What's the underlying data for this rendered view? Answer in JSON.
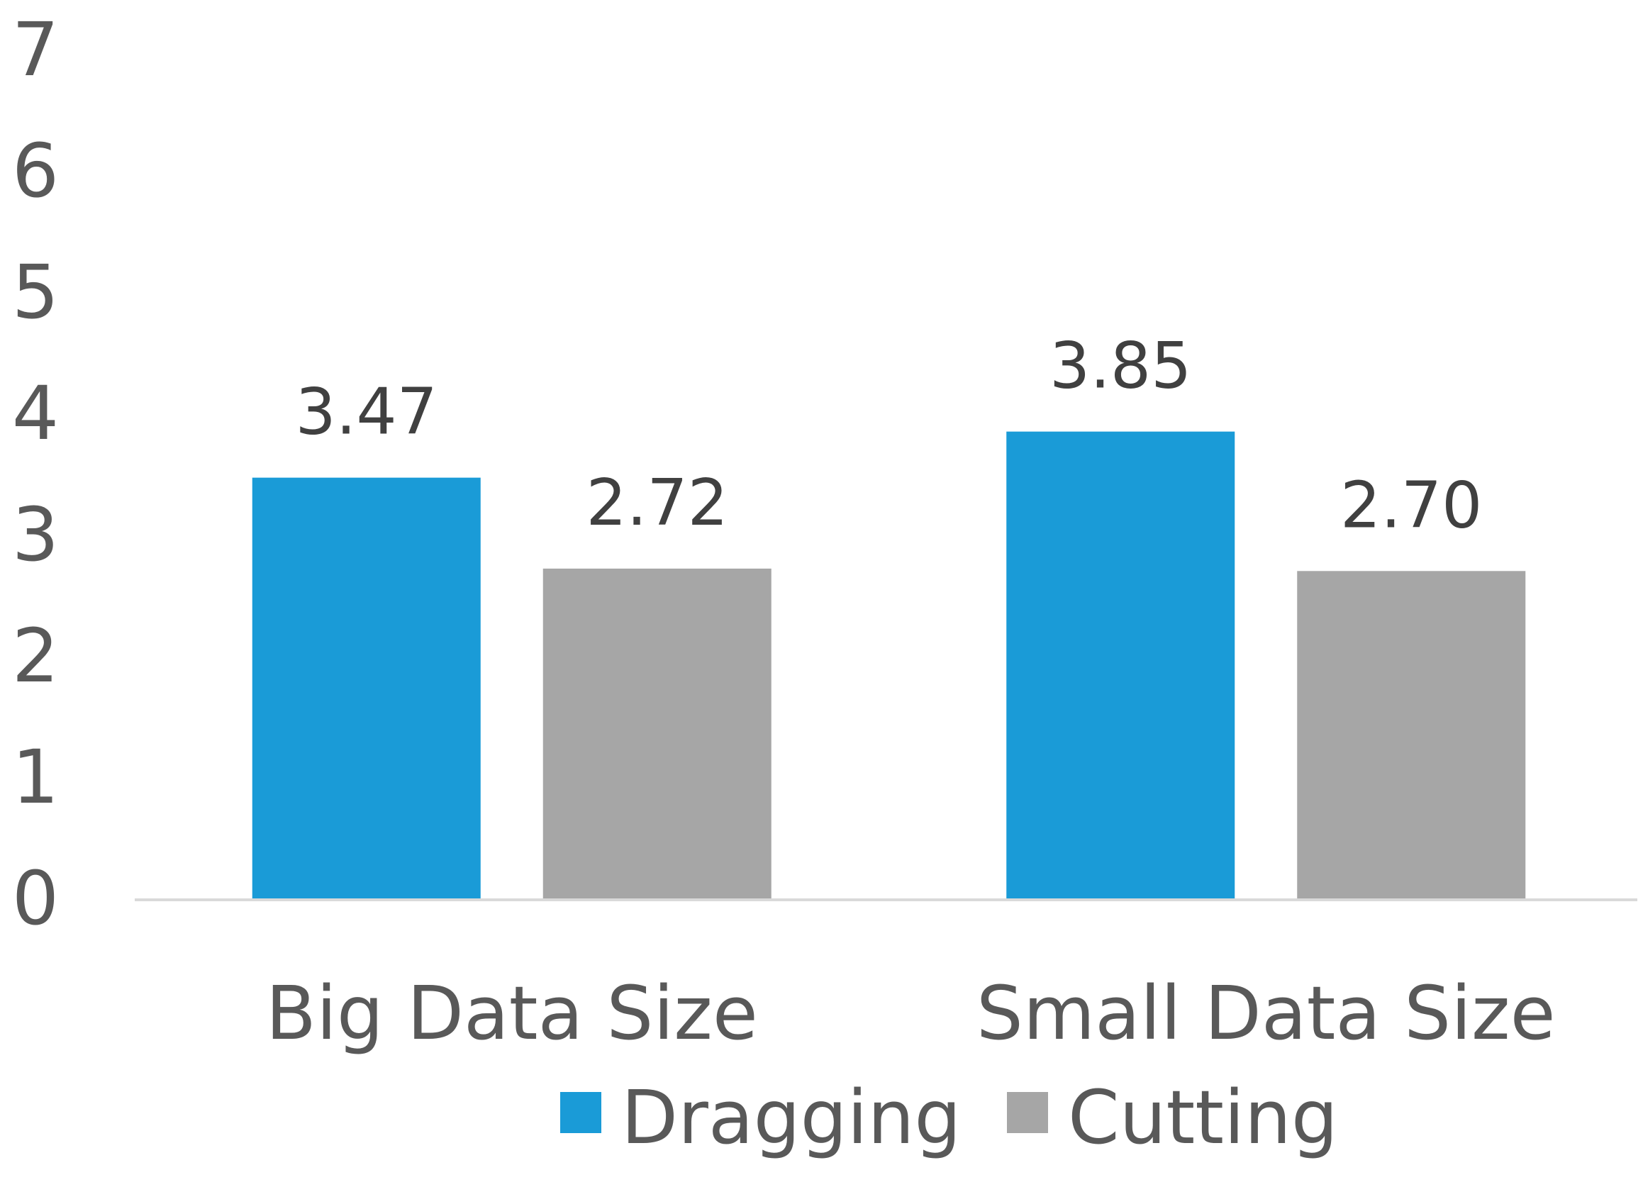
{
  "chart_data": {
    "type": "bar",
    "categories": [
      "Big Data Size",
      "Small Data Size"
    ],
    "series": [
      {
        "name": "Dragging",
        "values": [
          3.47,
          3.85
        ],
        "labels": [
          "3.47",
          "3.85"
        ],
        "color": "#1a9bd7"
      },
      {
        "name": "Cutting",
        "values": [
          2.72,
          2.7
        ],
        "labels": [
          "2.72",
          "2.70"
        ],
        "color": "#a6a6a6"
      }
    ],
    "ylim": [
      0,
      7
    ],
    "yticks": [
      "0",
      "1",
      "2",
      "3",
      "4",
      "5",
      "6",
      "7"
    ],
    "grid": false,
    "legend_position": "bottom",
    "axis_color": "#d9d9d9",
    "text_color": "#595959"
  }
}
